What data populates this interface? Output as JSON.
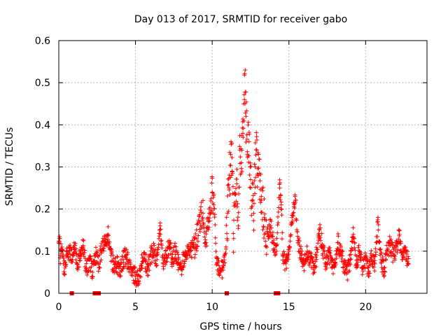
{
  "chart_data": {
    "type": "scatter",
    "title": "Day 013 of 2017, SRMTID for receiver gabo",
    "xlabel": "GPS time / hours",
    "ylabel": "SRMTID / TECUs",
    "xlim": [
      0,
      24
    ],
    "ylim": [
      0,
      0.6
    ],
    "x_ticks": [
      0,
      5,
      10,
      15,
      20
    ],
    "x_tick_labels": [
      "0",
      "5",
      "10",
      "15",
      "20"
    ],
    "y_ticks": [
      0,
      0.1,
      0.2,
      0.3,
      0.4,
      0.5,
      0.6
    ],
    "y_tick_labels": [
      "0",
      "0.1",
      "0.2",
      "0.3",
      "0.4",
      "0.5",
      "0.6"
    ],
    "grid": true,
    "marker": "plus",
    "color": "#ff0000",
    "series": [
      {
        "name": "SRMTID",
        "x_range_hours": [
          0.0,
          22.8
        ],
        "sample_points": [
          [
            0.0,
            0.12
          ],
          [
            0.05,
            0.13
          ],
          [
            0.1,
            0.09
          ],
          [
            0.2,
            0.11
          ],
          [
            0.3,
            0.07
          ],
          [
            0.4,
            0.06
          ],
          [
            0.5,
            0.09
          ],
          [
            0.7,
            0.1
          ],
          [
            0.9,
            0.08
          ],
          [
            1.0,
            0.12
          ],
          [
            1.2,
            0.07
          ],
          [
            1.4,
            0.09
          ],
          [
            1.6,
            0.11
          ],
          [
            1.8,
            0.06
          ],
          [
            2.0,
            0.08
          ],
          [
            2.2,
            0.05
          ],
          [
            2.4,
            0.09
          ],
          [
            2.6,
            0.07
          ],
          [
            2.8,
            0.1
          ],
          [
            3.0,
            0.13
          ],
          [
            3.2,
            0.14
          ],
          [
            3.4,
            0.09
          ],
          [
            3.6,
            0.06
          ],
          [
            3.8,
            0.07
          ],
          [
            4.0,
            0.05
          ],
          [
            4.2,
            0.08
          ],
          [
            4.4,
            0.09
          ],
          [
            4.6,
            0.06
          ],
          [
            4.8,
            0.05
          ],
          [
            5.0,
            0.04
          ],
          [
            5.2,
            0.03
          ],
          [
            5.4,
            0.07
          ],
          [
            5.6,
            0.08
          ],
          [
            5.8,
            0.06
          ],
          [
            6.0,
            0.09
          ],
          [
            6.2,
            0.1
          ],
          [
            6.4,
            0.08
          ],
          [
            6.6,
            0.16
          ],
          [
            6.8,
            0.07
          ],
          [
            7.0,
            0.09
          ],
          [
            7.2,
            0.11
          ],
          [
            7.4,
            0.08
          ],
          [
            7.6,
            0.1
          ],
          [
            7.8,
            0.07
          ],
          [
            8.0,
            0.06
          ],
          [
            8.2,
            0.09
          ],
          [
            8.4,
            0.11
          ],
          [
            8.6,
            0.1
          ],
          [
            8.8,
            0.12
          ],
          [
            9.0,
            0.13
          ],
          [
            9.2,
            0.17
          ],
          [
            9.4,
            0.19
          ],
          [
            9.6,
            0.12
          ],
          [
            9.8,
            0.2
          ],
          [
            10.0,
            0.24
          ],
          [
            10.1,
            0.21
          ],
          [
            10.3,
            0.07
          ],
          [
            10.5,
            0.05
          ],
          [
            10.7,
            0.06
          ],
          [
            10.9,
            0.11
          ],
          [
            11.0,
            0.19
          ],
          [
            11.1,
            0.25
          ],
          [
            11.2,
            0.33
          ],
          [
            11.3,
            0.29
          ],
          [
            11.4,
            0.13
          ],
          [
            11.5,
            0.21
          ],
          [
            11.6,
            0.26
          ],
          [
            11.7,
            0.16
          ],
          [
            11.8,
            0.34
          ],
          [
            11.9,
            0.31
          ],
          [
            12.0,
            0.38
          ],
          [
            12.1,
            0.46
          ],
          [
            12.15,
            0.53
          ],
          [
            12.2,
            0.42
          ],
          [
            12.3,
            0.33
          ],
          [
            12.4,
            0.36
          ],
          [
            12.5,
            0.27
          ],
          [
            12.6,
            0.22
          ],
          [
            12.7,
            0.19
          ],
          [
            12.8,
            0.3
          ],
          [
            12.9,
            0.34
          ],
          [
            13.0,
            0.28
          ],
          [
            13.2,
            0.23
          ],
          [
            13.4,
            0.18
          ],
          [
            13.6,
            0.14
          ],
          [
            13.8,
            0.16
          ],
          [
            14.0,
            0.12
          ],
          [
            14.2,
            0.1
          ],
          [
            14.4,
            0.25
          ],
          [
            14.5,
            0.21
          ],
          [
            14.6,
            0.09
          ],
          [
            14.8,
            0.07
          ],
          [
            15.0,
            0.11
          ],
          [
            15.2,
            0.18
          ],
          [
            15.4,
            0.23
          ],
          [
            15.6,
            0.12
          ],
          [
            15.8,
            0.09
          ],
          [
            16.0,
            0.07
          ],
          [
            16.2,
            0.1
          ],
          [
            16.4,
            0.08
          ],
          [
            16.6,
            0.06
          ],
          [
            16.8,
            0.09
          ],
          [
            17.0,
            0.15
          ],
          [
            17.2,
            0.11
          ],
          [
            17.4,
            0.07
          ],
          [
            17.6,
            0.1
          ],
          [
            17.8,
            0.06
          ],
          [
            18.0,
            0.08
          ],
          [
            18.2,
            0.12
          ],
          [
            18.4,
            0.09
          ],
          [
            18.6,
            0.07
          ],
          [
            18.8,
            0.05
          ],
          [
            19.0,
            0.08
          ],
          [
            19.2,
            0.14
          ],
          [
            19.4,
            0.07
          ],
          [
            19.6,
            0.1
          ],
          [
            19.8,
            0.06
          ],
          [
            20.0,
            0.08
          ],
          [
            20.2,
            0.05
          ],
          [
            20.4,
            0.09
          ],
          [
            20.6,
            0.07
          ],
          [
            20.8,
            0.17
          ],
          [
            21.0,
            0.08
          ],
          [
            21.2,
            0.06
          ],
          [
            21.4,
            0.1
          ],
          [
            21.6,
            0.12
          ],
          [
            21.8,
            0.09
          ],
          [
            22.0,
            0.11
          ],
          [
            22.2,
            0.14
          ],
          [
            22.4,
            0.08
          ],
          [
            22.6,
            0.1
          ],
          [
            22.8,
            0.07
          ]
        ]
      },
      {
        "name": "markers-on-axis",
        "marker": "square",
        "x": [
          0.85,
          2.35,
          2.6,
          10.95,
          14.15,
          14.3
        ],
        "y": [
          0,
          0,
          0,
          0,
          0,
          0
        ]
      }
    ]
  }
}
